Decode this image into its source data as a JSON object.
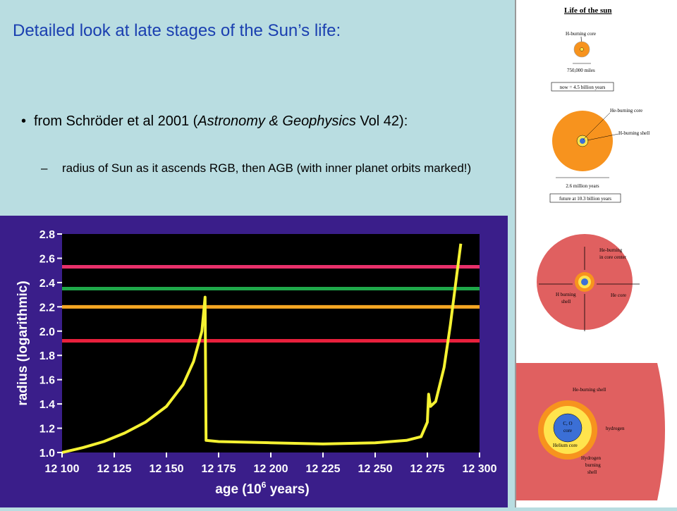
{
  "slide": {
    "title": "Detailed look at late stages of the Sun’s life:",
    "bullet1": {
      "marker": "•",
      "text_pre": "from Schröder et al 2001 (",
      "text_italic": "Astronomy & Geophysics",
      "text_post": " Vol 42):"
    },
    "bullet2": {
      "marker": "–",
      "text": "radius of Sun as it ascends RGB, then AGB (with inner planet orbits marked!)"
    }
  },
  "chart_data": {
    "type": "line",
    "xlabel": "age (10",
    "xlabel_sup": "6",
    "xlabel_end": " years)",
    "ylabel": "radius (logarithmic)",
    "x_ticks": [
      "12 100",
      "12 125",
      "12 150",
      "12 175",
      "12 200",
      "12 225",
      "12 250",
      "12 275",
      "12 300"
    ],
    "y_ticks": [
      "1.0",
      "1.2",
      "1.4",
      "1.6",
      "1.8",
      "2.0",
      "2.2",
      "2.4",
      "2.6",
      "2.8"
    ],
    "xlim": [
      12100,
      12300
    ],
    "ylim": [
      1.0,
      2.8
    ],
    "colors": {
      "background": "#3a1e8a",
      "plot_bg": "#000000",
      "curve": "#f5f232"
    },
    "hlines": [
      {
        "y": 1.92,
        "color": "#e8203c"
      },
      {
        "y": 2.2,
        "color": "#f5a623"
      },
      {
        "y": 2.35,
        "color": "#1fa84a"
      },
      {
        "y": 2.53,
        "color": "#e8306a"
      }
    ],
    "series": [
      {
        "color": "#f5f232",
        "points": [
          [
            12100,
            1.0
          ],
          [
            12110,
            1.04
          ],
          [
            12120,
            1.09
          ],
          [
            12130,
            1.16
          ],
          [
            12140,
            1.25
          ],
          [
            12150,
            1.38
          ],
          [
            12158,
            1.56
          ],
          [
            12163,
            1.75
          ],
          [
            12167,
            2.0
          ],
          [
            12168.5,
            2.28
          ],
          [
            12169,
            1.1
          ],
          [
            12175,
            1.09
          ],
          [
            12200,
            1.08
          ],
          [
            12225,
            1.07
          ],
          [
            12250,
            1.08
          ],
          [
            12265,
            1.1
          ],
          [
            12272,
            1.13
          ],
          [
            12275,
            1.25
          ],
          [
            12275.6,
            1.48
          ],
          [
            12276.5,
            1.38
          ],
          [
            12279,
            1.42
          ],
          [
            12283,
            1.7
          ],
          [
            12286,
            2.05
          ],
          [
            12289,
            2.45
          ],
          [
            12291,
            2.72
          ]
        ]
      }
    ]
  },
  "diagram": {
    "title": "Life of the sun",
    "stage1": {
      "label_core": "H-burning core",
      "label_width": "750,000 miles",
      "caption": "now = 4.5 billion years"
    },
    "stage2": {
      "label_he_core": "He-burning core",
      "label_h_shell": "H-burning shell",
      "label_width": "2.6 million years",
      "caption": "future at 10.3 billion years"
    },
    "stage3": {
      "label_he": "He-burning",
      "label_he_2": "in core center",
      "label_h": "H burning",
      "label_h_2": "shell",
      "label_core": "He core"
    },
    "stage4": {
      "label_he_shell": "He-burning shell",
      "label_co": "C, O",
      "label_co_2": "core",
      "label_hydrogen": "hydrogen",
      "label_helium": "Helium core",
      "label_hyd_1": "Hydrogen",
      "label_hyd_2": "burning",
      "label_hyd_3": "shell"
    },
    "colors": {
      "orange": "#f7931e",
      "salmon": "#e06060",
      "yellow": "#ffe44d",
      "blue": "#3b6fd6"
    }
  }
}
